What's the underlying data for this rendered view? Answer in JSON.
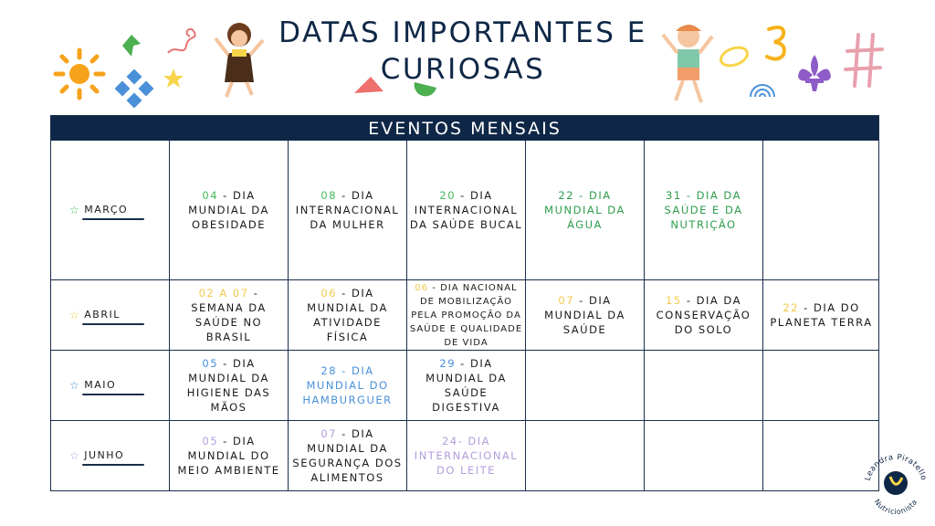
{
  "title": "DATAS IMPORTANTES E CURIOSAS",
  "table_header": "EVENTOS MENSAIS",
  "colors": {
    "navy": "#0f2747",
    "green": "#46b85a",
    "yellow": "#f2c94c",
    "blue": "#4a90d9",
    "purple": "#b39ddb"
  },
  "months": [
    {
      "label": "MARÇO",
      "star_color": "#46b85a"
    },
    {
      "label": "ABRIL",
      "star_color": "#f2c94c"
    },
    {
      "label": "MAIO",
      "star_color": "#4a90d9"
    },
    {
      "label": "JUNHO",
      "star_color": "#b39ddb"
    }
  ],
  "events": {
    "marco": [
      {
        "date": "04",
        "text": " - DIA MUNDIAL DA OBESIDADE"
      },
      {
        "date": "08",
        "text": " - DIA INTERNACIONAL DA MULHER"
      },
      {
        "date": "20",
        "text": " - DIA INTERNACIONAL DA SAÚDE BUCAL"
      },
      {
        "text": "22 - DIA MUNDIAL DA ÁGUA"
      },
      {
        "text": "31 - DIA DA SAÚDE E DA NUTRIÇÃO"
      }
    ],
    "abril": [
      {
        "date": "02 A 07",
        "text": " - SEMANA DA SAÚDE NO BRASIL"
      },
      {
        "date": "06",
        "text": " - DIA MUNDIAL DA ATIVIDADE FÍSICA"
      },
      {
        "date": "06",
        "text": " - DIA NACIONAL DE MOBILIZAÇÃO PELA PROMOÇÃO DA SAÚDE E QUALIDADE DE VIDA"
      },
      {
        "date": "07",
        "text": " - DIA MUNDIAL DA SAÚDE"
      },
      {
        "date": "15",
        "text": " - DIA DA CONSERVAÇÃO DO SOLO"
      },
      {
        "date": "22",
        "text": " - DIA DO PLANETA TERRA"
      }
    ],
    "maio": [
      {
        "date": "05",
        "text": " - DIA MUNDIAL DA HIGIENE DAS MÃOS"
      },
      {
        "text": "28 - DIA MUNDIAL DO HAMBURGUER"
      },
      {
        "date": "29",
        "text": " - DIA MUNDIAL DA SAÚDE DIGESTIVA"
      }
    ],
    "junho": [
      {
        "date": "05",
        "text": " - DIA MUNDIAL DO MEIO AMBIENTE"
      },
      {
        "date": "07",
        "text": " - DIA MUNDIAL DA SEGURANÇA DOS ALIMENTOS"
      },
      {
        "text": "24- DIA INTERNACIONAL DO LEITE"
      }
    ]
  },
  "logo": {
    "name": "Leandra Piratello",
    "subtitle": "Nutricionista"
  }
}
